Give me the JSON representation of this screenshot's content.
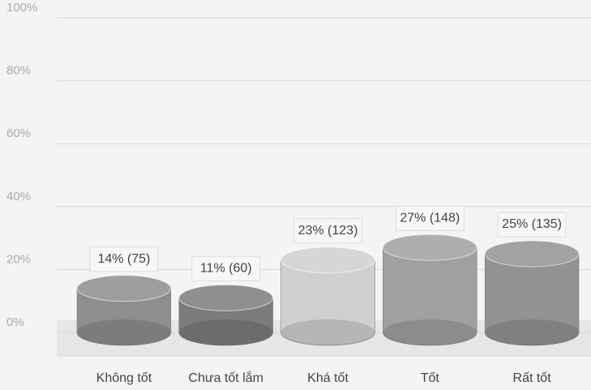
{
  "chart_data": {
    "type": "bar",
    "categories": [
      "Không tốt",
      "Chưa tốt lắm",
      "Khá tốt",
      "Tốt",
      "Rất tốt"
    ],
    "values": [
      14,
      11,
      23,
      27,
      25
    ],
    "value_labels": [
      "14% (75)",
      "11% (60)",
      "23% (123)",
      "27% (148)",
      "25% (135)"
    ],
    "colors": [
      "#8e8e8e",
      "#7c7c7c",
      "#cfcfcf",
      "#a0a0a0",
      "#929292"
    ],
    "ylim": [
      0,
      100
    ],
    "yticks": [
      {
        "value": 0,
        "label": "0%"
      },
      {
        "value": 20,
        "label": "20%"
      },
      {
        "value": 40,
        "label": "40%"
      },
      {
        "value": 60,
        "label": "60%"
      },
      {
        "value": 80,
        "label": "80%"
      },
      {
        "value": 100,
        "label": "100%"
      }
    ],
    "grid": true
  }
}
